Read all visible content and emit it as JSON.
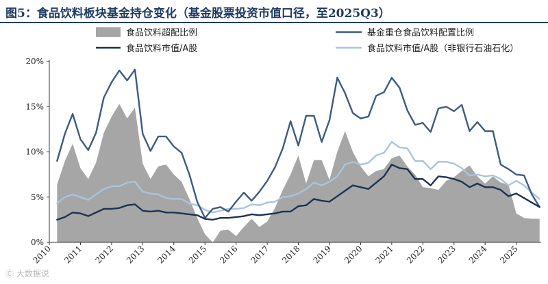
{
  "title": "图5：食品饮料板块基金持仓变化（基金股票投资市值口径，至2025Q3）",
  "watermark": "Ⓒ 大数据说",
  "chart_data": {
    "type": "line",
    "title": "图5：食品饮料板块基金持仓变化（基金股票投资市值口径，至2025Q3）",
    "xlabel": "",
    "ylabel": "",
    "ylim": [
      0,
      20
    ],
    "xlim": [
      2010,
      2025.8
    ],
    "y_ticks": [
      "0%",
      "5%",
      "10%",
      "15%",
      "20%"
    ],
    "y_tick_values": [
      0,
      5,
      10,
      15,
      20
    ],
    "x_ticks": [
      "2010",
      "2011",
      "2012",
      "2013",
      "2014",
      "2015",
      "2016",
      "2017",
      "2018",
      "2019",
      "2020",
      "2021",
      "2022",
      "2023",
      "2024",
      "2025"
    ],
    "x_tick_values": [
      2010,
      2011,
      2012,
      2013,
      2014,
      2015,
      2016,
      2017,
      2018,
      2019,
      2020,
      2021,
      2022,
      2023,
      2024,
      2025
    ],
    "legend_position": "top",
    "x": [
      2010.25,
      2010.5,
      2010.75,
      2011.0,
      2011.25,
      2011.5,
      2011.75,
      2012.0,
      2012.25,
      2012.5,
      2012.75,
      2013.0,
      2013.25,
      2013.5,
      2013.75,
      2014.0,
      2014.25,
      2014.5,
      2014.75,
      2015.0,
      2015.25,
      2015.5,
      2015.75,
      2016.0,
      2016.25,
      2016.5,
      2016.75,
      2017.0,
      2017.25,
      2017.5,
      2017.75,
      2018.0,
      2018.25,
      2018.5,
      2018.75,
      2019.0,
      2019.25,
      2019.5,
      2019.75,
      2020.0,
      2020.25,
      2020.5,
      2020.75,
      2021.0,
      2021.25,
      2021.5,
      2021.75,
      2022.0,
      2022.25,
      2022.5,
      2022.75,
      2023.0,
      2023.25,
      2023.5,
      2023.75,
      2024.0,
      2024.25,
      2024.5,
      2024.75,
      2025.0,
      2025.25,
      2025.5,
      2025.75
    ],
    "series": [
      {
        "name": "食品饮料超配比例",
        "style": "area",
        "color": "#a6a6a6",
        "values": [
          6.4,
          9.0,
          10.9,
          8.2,
          7.0,
          8.8,
          12.1,
          13.9,
          15.3,
          13.7,
          14.9,
          8.7,
          7.0,
          8.4,
          8.6,
          7.5,
          6.7,
          4.8,
          2.7,
          0.9,
          0.0,
          1.3,
          1.4,
          0.7,
          1.7,
          2.6,
          1.7,
          2.3,
          3.8,
          5.8,
          7.5,
          9.6,
          6.5,
          9.1,
          9.1,
          6.9,
          10.0,
          12.3,
          10.0,
          8.4,
          7.3,
          7.9,
          8.1,
          9.3,
          9.6,
          8.4,
          7.5,
          6.1,
          6.0,
          5.8,
          6.8,
          7.2,
          7.9,
          8.5,
          7.3,
          6.5,
          7.3,
          6.6,
          6.4,
          3.2,
          2.7,
          2.6,
          2.6
        ]
      },
      {
        "name": "基金重仓食品饮料配置比例",
        "style": "line",
        "color": "#3c5a82",
        "values": [
          9.0,
          12.0,
          14.2,
          11.4,
          10.2,
          12.1,
          16.0,
          17.7,
          19.0,
          17.9,
          19.1,
          12.0,
          10.1,
          11.7,
          11.7,
          10.6,
          9.9,
          7.5,
          4.5,
          2.7,
          3.7,
          3.9,
          3.4,
          4.5,
          5.5,
          4.6,
          5.6,
          6.8,
          8.3,
          10.4,
          13.4,
          10.7,
          14.0,
          14.0,
          11.1,
          13.5,
          18.2,
          16.5,
          14.3,
          13.7,
          13.9,
          16.2,
          16.6,
          18.2,
          17.1,
          14.6,
          13.0,
          13.2,
          12.2,
          14.8,
          15.0,
          14.5,
          15.2,
          12.3,
          13.3,
          12.3,
          12.3,
          8.6,
          8.1,
          7.5,
          7.4,
          5.3,
          3.9
        ]
      },
      {
        "name": "食品饮料市值/A股",
        "style": "line",
        "color": "#1c3255",
        "values": [
          2.5,
          2.8,
          3.3,
          3.2,
          2.9,
          3.3,
          3.7,
          3.7,
          3.8,
          4.1,
          4.2,
          3.5,
          3.4,
          3.5,
          3.3,
          3.3,
          3.2,
          3.1,
          3.0,
          2.6,
          2.5,
          2.7,
          2.7,
          2.8,
          2.9,
          3.1,
          3.0,
          3.1,
          3.2,
          3.4,
          3.4,
          4.0,
          4.1,
          4.8,
          4.6,
          4.5,
          5.1,
          5.7,
          6.3,
          6.1,
          5.9,
          6.6,
          7.3,
          8.6,
          8.2,
          8.1,
          7.0,
          7.0,
          6.3,
          7.3,
          7.2,
          7.0,
          6.7,
          6.1,
          6.5,
          6.1,
          6.1,
          5.8,
          5.1,
          5.4,
          4.9,
          4.4,
          3.9
        ]
      },
      {
        "name": "食品饮料市值/A股（非银行石油石化）",
        "style": "line",
        "color": "#a9c4de",
        "values": [
          4.3,
          5.0,
          5.3,
          5.0,
          4.7,
          5.3,
          5.9,
          6.2,
          6.2,
          6.6,
          6.7,
          5.6,
          5.4,
          5.3,
          4.9,
          4.8,
          4.8,
          4.3,
          4.1,
          3.6,
          3.3,
          3.5,
          3.7,
          3.7,
          3.8,
          4.2,
          4.1,
          4.4,
          4.5,
          5.0,
          5.1,
          5.4,
          5.9,
          6.6,
          6.3,
          6.7,
          7.3,
          8.6,
          8.9,
          8.6,
          8.8,
          9.6,
          9.9,
          11.1,
          10.5,
          10.4,
          9.0,
          9.0,
          8.1,
          8.9,
          8.9,
          8.7,
          8.2,
          7.4,
          7.5,
          7.3,
          7.4,
          7.0,
          6.3,
          6.8,
          6.3,
          5.5,
          4.8
        ]
      }
    ]
  }
}
